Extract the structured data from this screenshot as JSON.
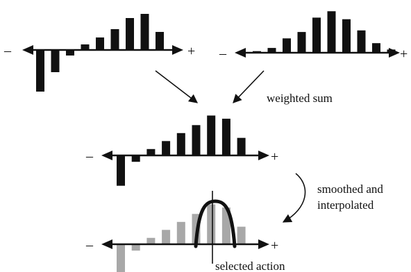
{
  "labels": {
    "weighted_sum": "weighted sum",
    "smoothed_line1": "smoothed and",
    "smoothed_line2": "interpolated",
    "selected_action": "selected action"
  },
  "axis_signs": {
    "negative": "–",
    "positive": "+"
  },
  "colors": {
    "bar": "#111111",
    "bar_smoothed": "#a8a8a8",
    "curve": "#111111"
  },
  "histograms": [
    {
      "name": "histogram-top-left",
      "values": [
        -3,
        -1.6,
        -0.4,
        0.4,
        0.9,
        1.5,
        2.3,
        2.6,
        1.3,
        0
      ]
    },
    {
      "name": "histogram-top-right",
      "values": [
        0.1,
        0.3,
        0.9,
        1.3,
        2.2,
        2.6,
        2.1,
        1.4,
        0.6,
        0.2
      ]
    },
    {
      "name": "histogram-weighted-sum",
      "values": [
        -1.9,
        -0.4,
        0.4,
        0.9,
        1.4,
        1.9,
        2.5,
        2.3,
        1.1,
        0
      ]
    },
    {
      "name": "histogram-smoothed",
      "values": [
        -1.9,
        -0.4,
        0.4,
        0.9,
        1.4,
        1.9,
        2.5,
        2.3,
        1.1,
        0
      ]
    }
  ]
}
